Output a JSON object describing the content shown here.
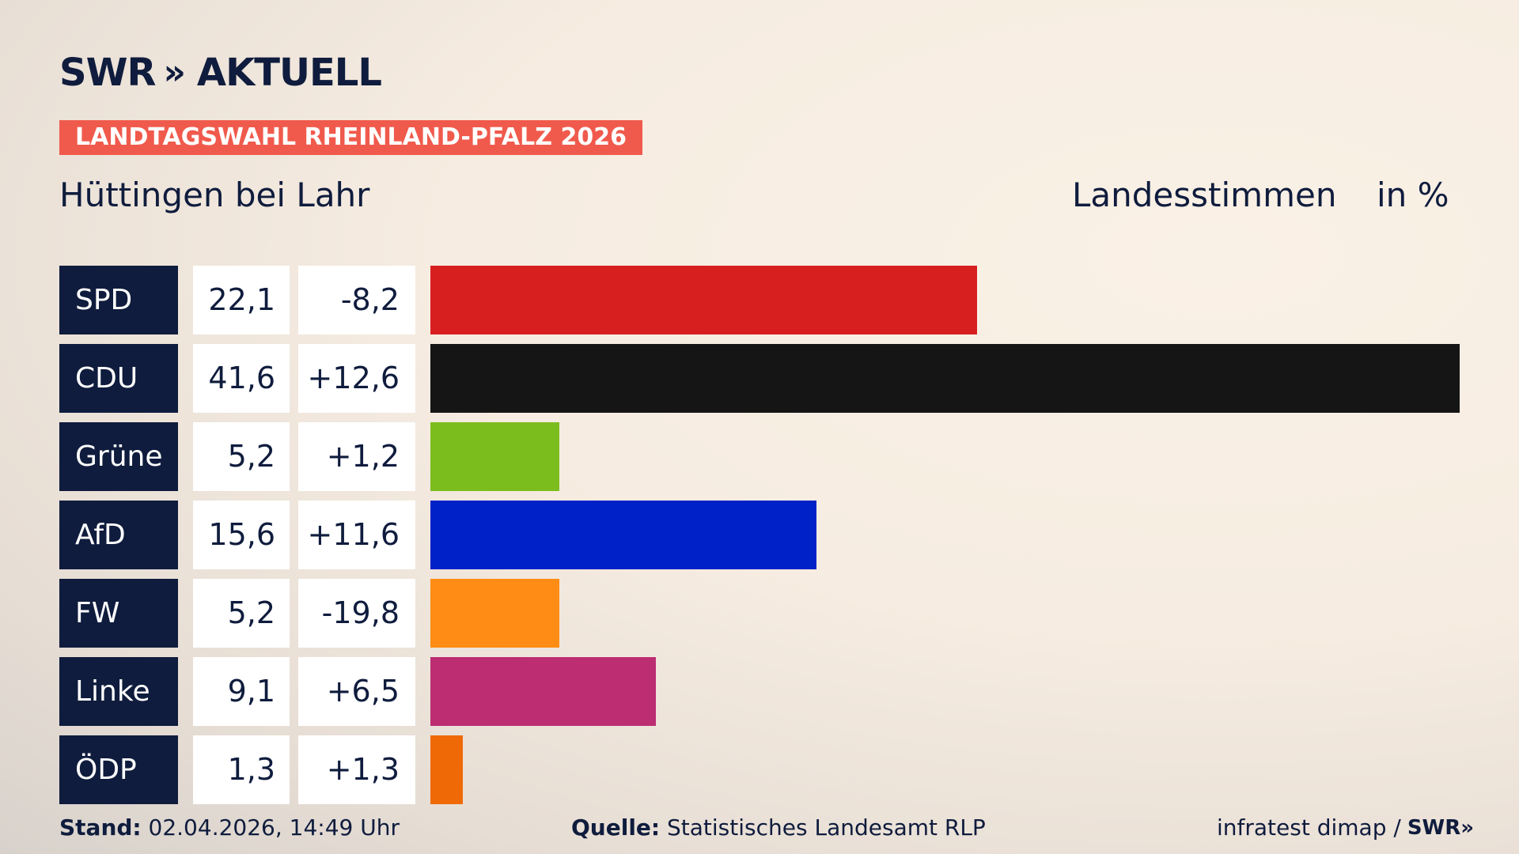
{
  "brand": {
    "logo_text": "SWR",
    "logo_chevrons": "»",
    "logo_suffix": "AKTUELL"
  },
  "banner": "LANDTAGSWAHL RHEINLAND-PFALZ 2026",
  "place": "Hüttingen bei Lahr",
  "header": {
    "votes": "Landesstimmen",
    "unit": "in %"
  },
  "chart_data": {
    "type": "bar",
    "orientation": "horizontal",
    "categories": [
      "SPD",
      "CDU",
      "Grüne",
      "AfD",
      "FW",
      "Linke",
      "ÖDP"
    ],
    "values": [
      22.1,
      41.6,
      5.2,
      15.6,
      5.2,
      9.1,
      1.3
    ],
    "value_labels": [
      "22,1",
      "41,6",
      "5,2",
      "15,6",
      "5,2",
      "9,1",
      "1,3"
    ],
    "diff_labels": [
      "-8,2",
      "+12,6",
      "+1,2",
      "+11,6",
      "-19,8",
      "+6,5",
      "+1,3"
    ],
    "colors": [
      "#d81f1f",
      "#151515",
      "#7cbd1e",
      "#0021c8",
      "#ff8c14",
      "#bc2d72",
      "#ef6a06"
    ],
    "xlim": [
      0,
      41.6
    ]
  },
  "footer": {
    "stand_label": "Stand:",
    "stand_value": "02.04.2026, 14:49 Uhr",
    "source_label": "Quelle:",
    "source_value": "Statistisches Landesamt RLP",
    "credit": "infratest dimap /",
    "credit_brand": "SWR»"
  }
}
